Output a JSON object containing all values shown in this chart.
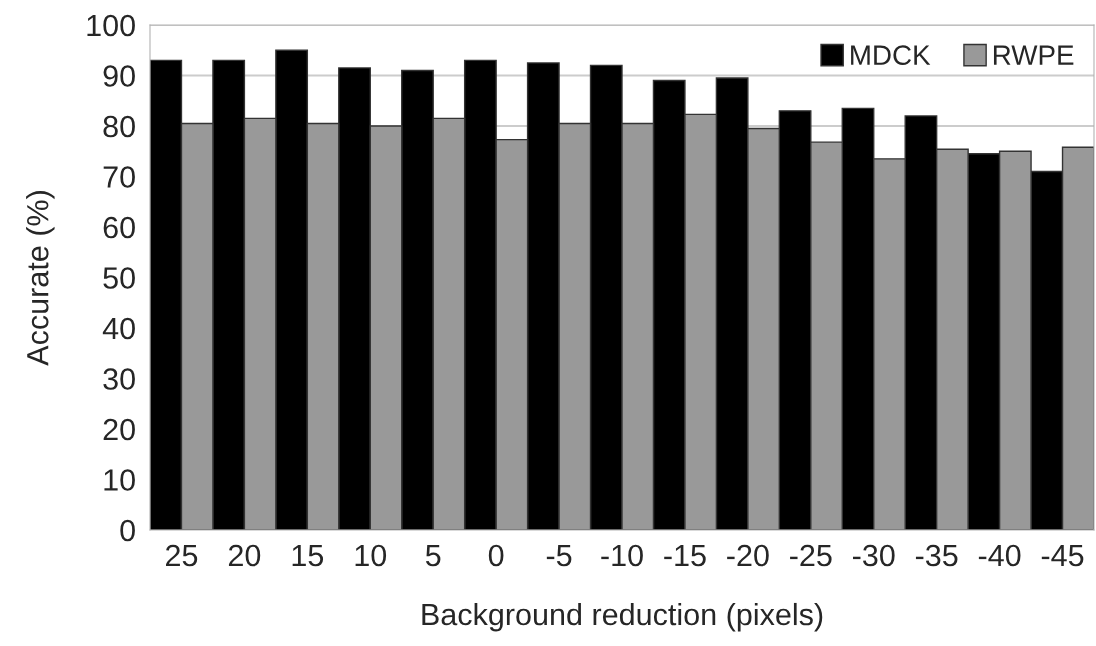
{
  "chart_data": {
    "type": "bar",
    "xlabel": "Background reduction (pixels)",
    "ylabel": "Accurate (%)",
    "categories": [
      "25",
      "20",
      "15",
      "10",
      "5",
      "0",
      "-5",
      "-10",
      "-15",
      "-20",
      "-25",
      "-30",
      "-35",
      "-40",
      "-45"
    ],
    "series": [
      {
        "name": "MDCK",
        "color": "#000000",
        "values": [
          93,
          93,
          95,
          91.5,
          91,
          93,
          92.5,
          92,
          89,
          89.5,
          83,
          83.5,
          82,
          74.5,
          71
        ]
      },
      {
        "name": "RWPE",
        "color": "#999999",
        "values": [
          80.5,
          81.5,
          80.5,
          80,
          81.5,
          77.3,
          80.5,
          80.5,
          82.3,
          79.5,
          76.8,
          73.5,
          75.4,
          75,
          75.8
        ]
      }
    ],
    "ylim": [
      0,
      100
    ],
    "yticks": [
      0,
      10,
      20,
      30,
      40,
      50,
      60,
      70,
      80,
      90,
      100
    ],
    "grid": "y",
    "legend": "top right"
  }
}
